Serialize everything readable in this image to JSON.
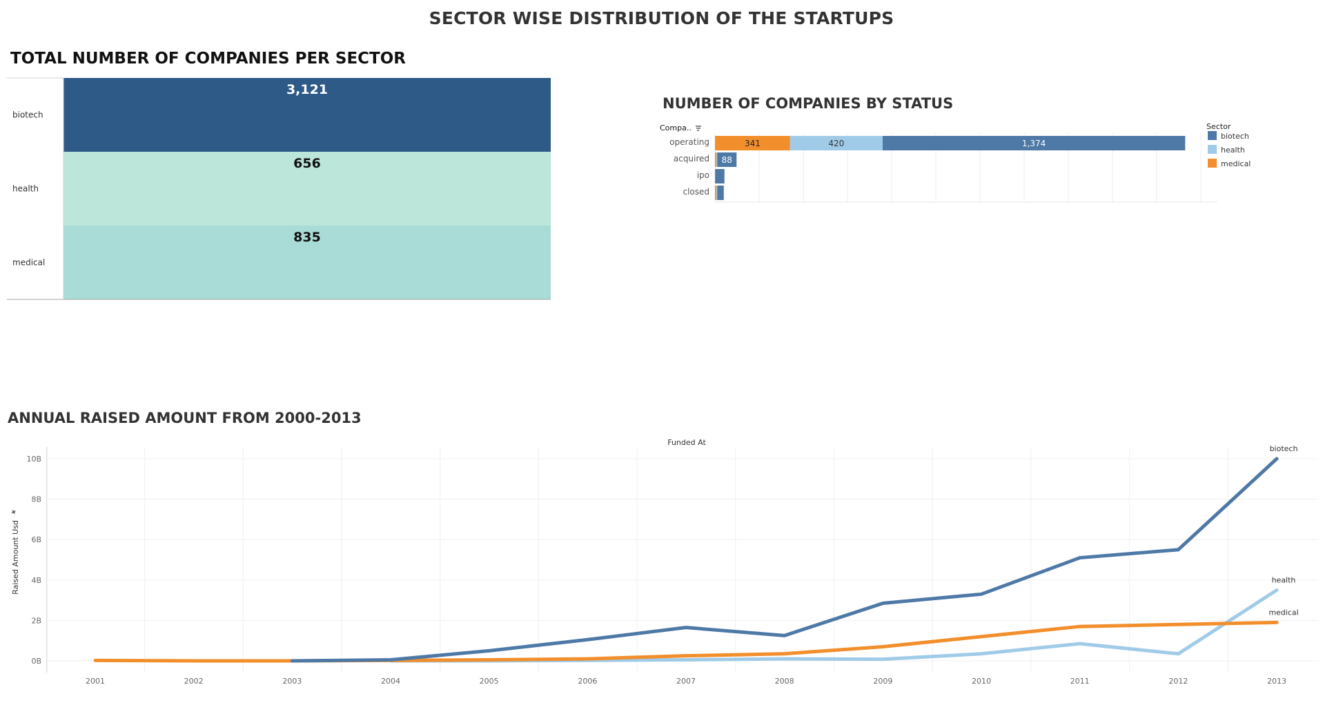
{
  "dashboard": {
    "title": "SECTOR WISE DISTRIBUTION OF THE STARTUPS"
  },
  "colors": {
    "biotech": "#4e79a7",
    "health": "#a0cbe8",
    "medical": "#f28e2b",
    "heat_biotech": "#2e5a87",
    "heat_health": "#bde6db",
    "heat_medical": "#a9dcd6"
  },
  "sector_chart": {
    "title": "TOTAL NUMBER OF COMPANIES PER SECTOR",
    "chart_data": {
      "type": "heatmap",
      "title": "TOTAL NUMBER OF COMPANIES PER SECTOR",
      "categories": [
        "biotech",
        "health",
        "medical"
      ],
      "values": [
        3121,
        656,
        835
      ],
      "labels": [
        "3,121",
        "656",
        "835"
      ]
    }
  },
  "status_chart": {
    "title": "NUMBER OF COMPANIES BY STATUS",
    "axis_header": "Compa..",
    "legend_title": "Sector",
    "legend": [
      "biotech",
      "health",
      "medical"
    ],
    "chart_data": {
      "type": "bar",
      "orientation": "horizontal",
      "stacked": true,
      "categories": [
        "operating",
        "acquired",
        "ipo",
        "closed"
      ],
      "series": [
        {
          "name": "medical",
          "values": [
            341,
            6,
            1,
            6
          ]
        },
        {
          "name": "health",
          "values": [
            420,
            4,
            0,
            4
          ]
        },
        {
          "name": "biotech",
          "values": [
            1374,
            88,
            42,
            30
          ]
        }
      ],
      "data_labels": {
        "medical": [
          "341",
          "",
          "",
          ""
        ],
        "health": [
          "420",
          "",
          "",
          ""
        ],
        "biotech": [
          "1,374",
          "88",
          "",
          ""
        ]
      },
      "xlim": [
        0,
        2250
      ],
      "grid": true,
      "legend_position": "right"
    }
  },
  "line_chart": {
    "title": "ANNUAL RAISED AMOUNT FROM 2000-2013",
    "xlabel": "Funded At",
    "ylabel": "Raised Amount Usd",
    "chart_data": {
      "type": "line",
      "title": "ANNUAL RAISED AMOUNT FROM 2000-2013",
      "xlabel": "Funded At",
      "ylabel": "Raised Amount Usd",
      "x": [
        2001,
        2002,
        2003,
        2004,
        2005,
        2006,
        2007,
        2008,
        2009,
        2010,
        2011,
        2012,
        2013
      ],
      "series": [
        {
          "name": "biotech",
          "x": [
            2003,
            2004,
            2005,
            2006,
            2007,
            2008,
            2009,
            2010,
            2011,
            2012,
            2013
          ],
          "values": [
            0.0,
            0.05,
            0.5,
            1.05,
            1.65,
            1.25,
            2.85,
            3.3,
            5.1,
            5.5,
            10.0
          ]
        },
        {
          "name": "health",
          "x": [
            2004,
            2005,
            2006,
            2007,
            2008,
            2009,
            2010,
            2011,
            2012,
            2013
          ],
          "values": [
            0.0,
            0.0,
            0.02,
            0.05,
            0.1,
            0.08,
            0.35,
            0.85,
            0.35,
            3.5
          ]
        },
        {
          "name": "medical",
          "x": [
            2001,
            2002,
            2003,
            2004,
            2005,
            2006,
            2007,
            2008,
            2009,
            2010,
            2011,
            2012,
            2013
          ],
          "values": [
            0.02,
            0.0,
            0.0,
            0.02,
            0.05,
            0.1,
            0.25,
            0.35,
            0.7,
            1.2,
            1.7,
            1.8,
            1.9
          ]
        }
      ],
      "yticks": [
        "0B",
        "2B",
        "4B",
        "6B",
        "8B",
        "10B"
      ],
      "ylim": [
        0,
        10
      ],
      "yunit": "B",
      "grid": true
    }
  }
}
